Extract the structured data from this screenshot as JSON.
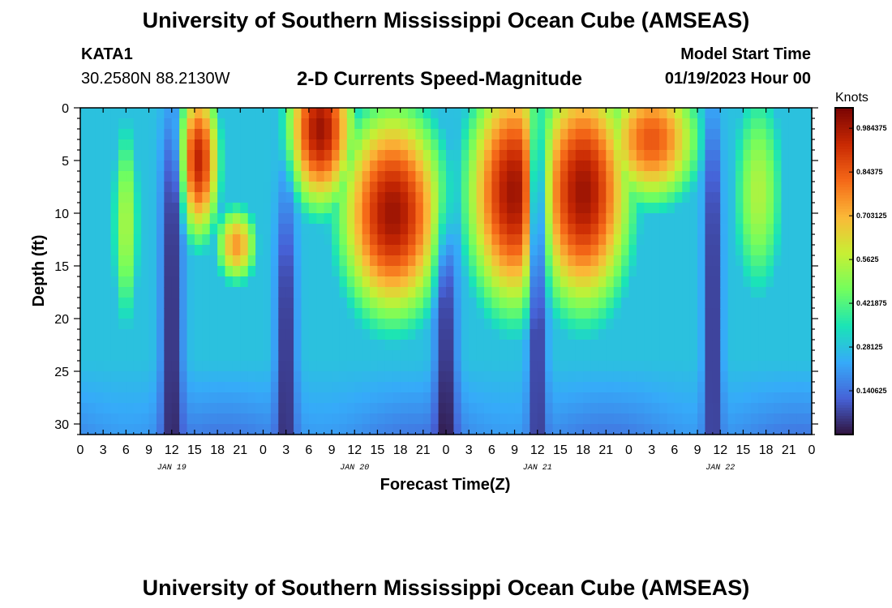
{
  "page": {
    "title_top": "University of Southern Mississippi Ocean Cube (AMSEAS)",
    "title_bottom": "University of Southern Mississippi Ocean Cube (AMSEAS)",
    "station": "KATA1",
    "coordinates": "30.2580N  88.2130W",
    "plot_title": "2-D Currents Speed-Magnitude",
    "model_start_label": "Model Start Time",
    "model_start_value": "01/19/2023 Hour 00"
  },
  "chart_data": {
    "type": "heatmap",
    "title": "2-D Currents Speed-Magnitude",
    "xlabel": "Forecast Time(Z)",
    "ylabel": "Depth (ft)",
    "x_hours_range": [
      0,
      96
    ],
    "ylim": [
      0,
      31
    ],
    "y_inverted": true,
    "x_tick_labels": [
      "0",
      "3",
      "6",
      "9",
      "12",
      "15",
      "18",
      "21",
      "0",
      "3",
      "6",
      "9",
      "12",
      "15",
      "18",
      "21",
      "0",
      "3",
      "6",
      "9",
      "12",
      "15",
      "18",
      "21",
      "0",
      "3",
      "6",
      "9",
      "12",
      "15",
      "18",
      "21",
      "0"
    ],
    "y_ticks": [
      0,
      5,
      10,
      15,
      20,
      25,
      30
    ],
    "date_labels": [
      {
        "text": "JAN 19",
        "hour": 12
      },
      {
        "text": "JAN 20",
        "hour": 36
      },
      {
        "text": "JAN 21",
        "hour": 60
      },
      {
        "text": "JAN 22",
        "hour": 84
      }
    ],
    "colorbar": {
      "unit": "Knots",
      "range": [
        0.0,
        1.05
      ],
      "tick_labels": [
        "0.140625",
        "0.28125",
        "0.421875",
        "0.5625",
        "0.703125",
        "0.84375",
        "0.984375"
      ],
      "tick_values": [
        0.140625,
        0.28125,
        0.421875,
        0.5625,
        0.703125,
        0.84375,
        0.984375
      ],
      "colormap": [
        "#30123b",
        "#4662d7",
        "#36aaf9",
        "#1ae4b6",
        "#72fe5e",
        "#c7ef34",
        "#fbb938",
        "#f56918",
        "#c92903",
        "#7a0403"
      ]
    },
    "features": [
      {
        "name": "early-orange-plume",
        "hour": 6,
        "depth": 11,
        "speed": 0.55,
        "sigma_hours": 1.6,
        "sigma_depth": 9
      },
      {
        "name": "jan19-surface-core",
        "hour": 15.5,
        "depth": 5,
        "speed": 0.95,
        "sigma_hours": 2.2,
        "sigma_depth": 6
      },
      {
        "name": "jan19-subsurface-eddy",
        "hour": 20.5,
        "depth": 13,
        "speed": 0.75,
        "sigma_hours": 2.2,
        "sigma_depth": 3
      },
      {
        "name": "jan20-surface-core",
        "hour": 31.5,
        "depth": 2,
        "speed": 1.0,
        "sigma_hours": 3.5,
        "sigma_depth": 6
      },
      {
        "name": "jan20-deep-core",
        "hour": 41,
        "depth": 10,
        "speed": 1.0,
        "sigma_hours": 5.5,
        "sigma_depth": 8
      },
      {
        "name": "jan21-core",
        "hour": 57,
        "depth": 8,
        "speed": 1.0,
        "sigma_hours": 5,
        "sigma_depth": 9
      },
      {
        "name": "jan21-late-core",
        "hour": 66,
        "depth": 8,
        "speed": 1.0,
        "sigma_hours": 5,
        "sigma_depth": 9
      },
      {
        "name": "jan22-surface",
        "hour": 75,
        "depth": 3,
        "speed": 0.85,
        "sigma_hours": 5,
        "sigma_depth": 5
      },
      {
        "name": "jan22-late-orange",
        "hour": 89,
        "depth": 8,
        "speed": 0.55,
        "sigma_hours": 3,
        "sigma_depth": 9
      }
    ],
    "minima": [
      {
        "name": "trough-jan19-12z",
        "hour": 12,
        "depth": 15,
        "depth_factor": 0.9,
        "sigma_hours": 1.0
      },
      {
        "name": "trough-jan20-03z",
        "hour": 27,
        "depth": 22,
        "depth_factor": 0.9,
        "sigma_hours": 0.9
      },
      {
        "name": "trough-jan20-23z",
        "hour": 48,
        "depth": 25,
        "depth_factor": 0.9,
        "sigma_hours": 1.0
      },
      {
        "name": "eddy-jan21-12z",
        "hour": 60,
        "depth": 13,
        "depth_factor": 0.85,
        "sigma_hours": 0.8
      },
      {
        "name": "trough-jan22-11z",
        "hour": 83,
        "depth": 15,
        "depth_factor": 0.9,
        "sigma_hours": 0.8
      }
    ]
  }
}
